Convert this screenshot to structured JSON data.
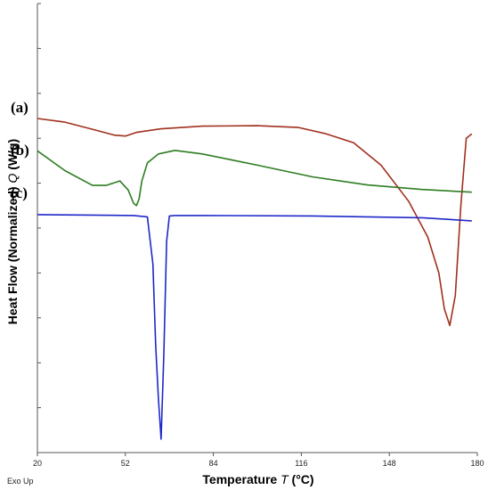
{
  "chart_data": {
    "type": "line",
    "xlabel": "Temperature",
    "xlabel_symbol": "T",
    "xlabel_unit": "(°C)",
    "ylabel": "Heat Flow (Normalized)",
    "ylabel_symbol": "Q",
    "ylabel_unit": "(W/g)",
    "note": "Exo Up",
    "xlim": [
      20,
      180
    ],
    "ylim": [
      -10,
      0
    ],
    "x_ticks": [
      20,
      52,
      84,
      116,
      148,
      180
    ],
    "y_ticks": [
      -10,
      -9,
      -8,
      -7,
      -6,
      -5,
      -4,
      -3,
      -2,
      -1,
      0
    ],
    "show_y_tick_labels": false,
    "grid": false,
    "series": [
      {
        "name": "(a)",
        "color": "#a0301e",
        "x": [
          20,
          30,
          40,
          48,
          52,
          56,
          65,
          80,
          100,
          115,
          125,
          135,
          145,
          155,
          162,
          166,
          168,
          170,
          172,
          174,
          176,
          178
        ],
        "y": [
          -2.56,
          -2.64,
          -2.8,
          -2.93,
          -2.95,
          -2.87,
          -2.79,
          -2.73,
          -2.72,
          -2.76,
          -2.9,
          -3.1,
          -3.6,
          -4.4,
          -5.2,
          -6.0,
          -6.8,
          -7.17,
          -6.5,
          -4.5,
          -3.0,
          -2.9
        ]
      },
      {
        "name": "(b)",
        "color": "#2e7d22",
        "x": [
          20,
          30,
          40,
          45,
          50,
          53,
          55,
          56,
          57,
          58,
          60,
          64,
          70,
          80,
          100,
          120,
          140,
          160,
          178
        ],
        "y": [
          -3.28,
          -3.72,
          -4.05,
          -4.05,
          -3.95,
          -4.15,
          -4.45,
          -4.5,
          -4.35,
          -3.95,
          -3.55,
          -3.35,
          -3.27,
          -3.35,
          -3.6,
          -3.86,
          -4.04,
          -4.14,
          -4.2
        ]
      },
      {
        "name": "(c)",
        "color": "#1f28c8",
        "x": [
          20,
          55,
          60,
          62,
          63,
          64,
          65,
          66,
          67,
          68,
          70,
          80,
          120,
          160,
          178
        ],
        "y": [
          -4.7,
          -4.72,
          -4.75,
          -5.8,
          -7.6,
          -8.8,
          -9.7,
          -7.8,
          -5.3,
          -4.73,
          -4.72,
          -4.72,
          -4.73,
          -4.77,
          -4.84
        ]
      }
    ]
  }
}
